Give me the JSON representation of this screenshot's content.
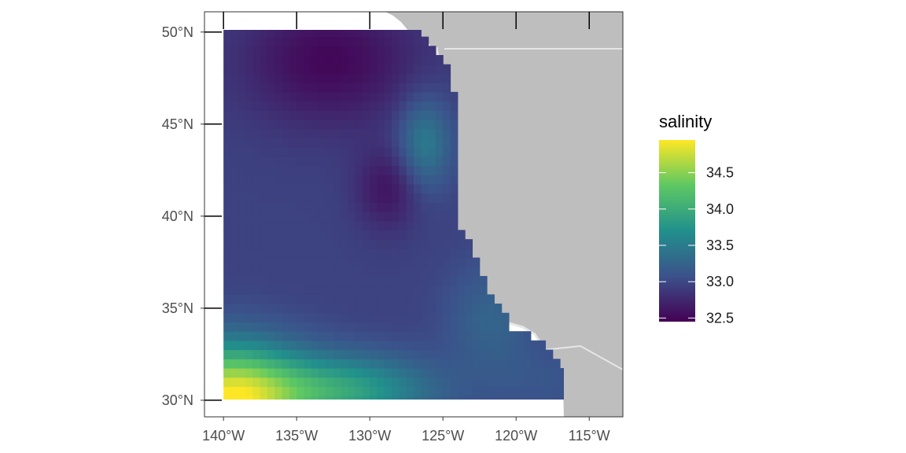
{
  "map": {
    "legend": {
      "title": "salinity",
      "breaks": [
        "34.5",
        "34.0",
        "33.5",
        "33.0",
        "32.5"
      ],
      "break_values": [
        34.5,
        34.0,
        33.5,
        33.0,
        32.5
      ],
      "range": [
        32.45,
        34.95
      ]
    },
    "x_axis": {
      "ticks": [
        "140°W",
        "135°W",
        "130°W",
        "125°W",
        "120°W",
        "115°W"
      ],
      "tick_values": [
        -140,
        -135,
        -130,
        -125,
        -120,
        -115
      ],
      "range": [
        -141.3,
        -112.7
      ]
    },
    "y_axis": {
      "ticks": [
        "50°N",
        "45°N",
        "40°N",
        "35°N",
        "30°N"
      ],
      "tick_values": [
        50,
        45,
        40,
        35,
        30
      ],
      "range": [
        29.1,
        51.1
      ]
    },
    "colors": {
      "land": "#bebebe",
      "borders": "#e6e6e6",
      "panel_border": "#333333",
      "viridis": [
        "#440154",
        "#3b528b",
        "#21908c",
        "#5dc863",
        "#fde725"
      ]
    },
    "grid": false
  }
}
